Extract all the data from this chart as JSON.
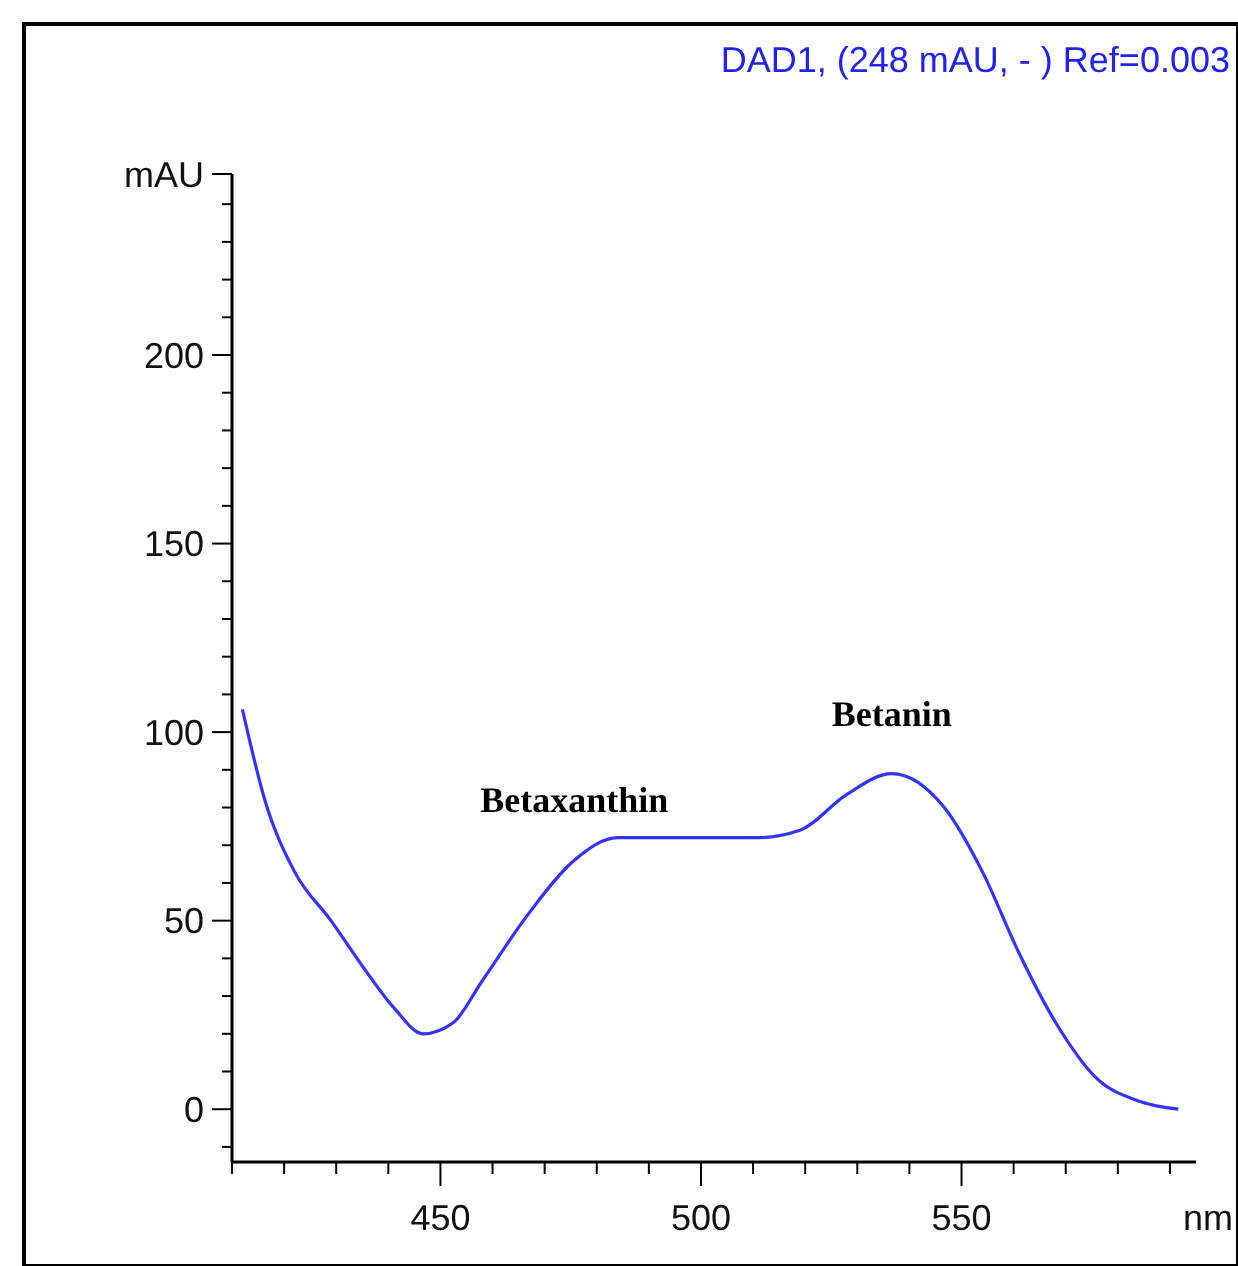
{
  "chart_data": {
    "type": "line",
    "title": "DAD1, (248 mAU, - ) Ref=0.003",
    "xlabel": "nm",
    "x": [
      412,
      416.3,
      422,
      429,
      435,
      441,
      446.7,
      452.5,
      458,
      467,
      475.7,
      484,
      497,
      510.5,
      519,
      528,
      536.6,
      546.7,
      554,
      561,
      568.5,
      575.7,
      584.4,
      591.6
    ],
    "series": [
      {
        "color": "#3333ff",
        "values": [
          106,
          82,
          63,
          50,
          38,
          27,
          20,
          23,
          34,
          52,
          66,
          72,
          72,
          72,
          74,
          83.5,
          89,
          80,
          63,
          41.5,
          22,
          8.5,
          2,
          0
        ]
      }
    ],
    "xlim": [
      410,
      595
    ],
    "ylim": [
      -14,
      248
    ],
    "xticks": [
      {
        "value": 410,
        "label": null
      },
      {
        "value": 420,
        "label": null
      },
      {
        "value": 430,
        "label": null
      },
      {
        "value": 440,
        "label": null
      },
      450,
      {
        "value": 460,
        "label": null
      },
      {
        "value": 470,
        "label": null
      },
      {
        "value": 480,
        "label": null
      },
      {
        "value": 490,
        "label": null
      },
      500,
      {
        "value": 510,
        "label": null
      },
      {
        "value": 520,
        "label": null
      },
      {
        "value": 530,
        "label": null
      },
      {
        "value": 540,
        "label": null
      },
      550,
      {
        "value": 560,
        "label": null
      },
      {
        "value": 570,
        "label": null
      },
      {
        "value": 580,
        "label": null
      },
      {
        "value": 590,
        "label": null
      }
    ],
    "yticks": [
      {
        "value": -10,
        "label": null
      },
      0,
      {
        "value": 10,
        "label": null
      },
      {
        "value": 20,
        "label": null
      },
      {
        "value": 30,
        "label": null
      },
      {
        "value": 40,
        "label": null
      },
      50,
      {
        "value": 60,
        "label": null
      },
      {
        "value": 70,
        "label": null
      },
      {
        "value": 80,
        "label": null
      },
      {
        "value": 90,
        "label": null
      },
      100,
      {
        "value": 110,
        "label": null
      },
      {
        "value": 120,
        "label": null
      },
      {
        "value": 130,
        "label": null
      },
      {
        "value": 140,
        "label": null
      },
      150,
      {
        "value": 160,
        "label": null
      },
      {
        "value": 170,
        "label": null
      },
      {
        "value": 180,
        "label": null
      },
      {
        "value": 190,
        "label": null
      },
      200,
      {
        "value": 210,
        "label": null
      },
      {
        "value": 220,
        "label": null
      },
      {
        "value": 230,
        "label": null
      },
      {
        "value": 240,
        "label": null
      },
      {
        "value": 248,
        "label": "mAU"
      }
    ],
    "annotations": [
      {
        "text": "Betaxanthin",
        "x": 475.7,
        "y": 66
      },
      {
        "text": "Betanin",
        "x": 536.6,
        "y": 89
      }
    ],
    "grid": false,
    "marker": "none",
    "line_style": "solid"
  }
}
